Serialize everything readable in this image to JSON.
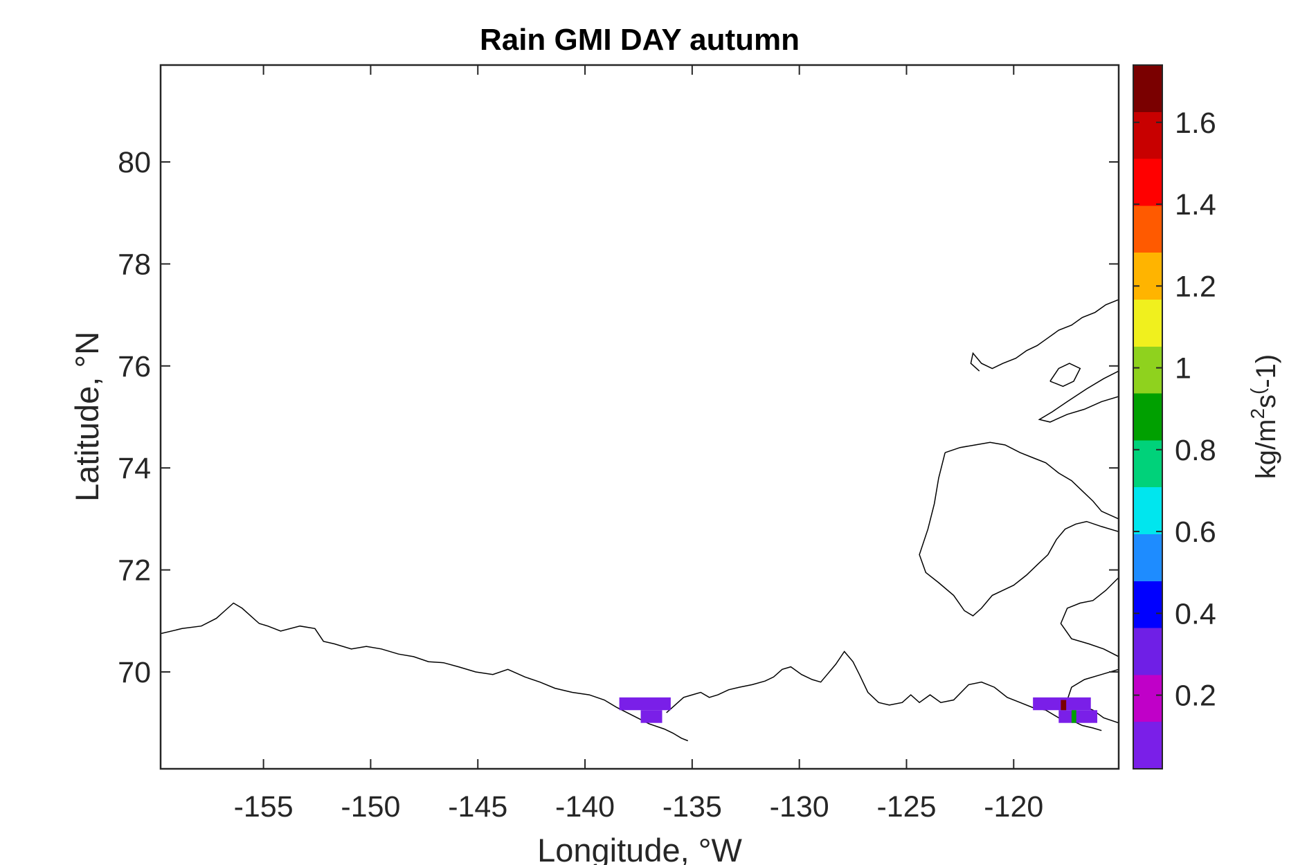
{
  "chart_data": {
    "type": "heatmap",
    "title": "Rain GMI DAY autumn",
    "xlabel": "Longitude, °W",
    "ylabel": "Latitude, °N",
    "xlim": [
      -159.8,
      -115.1
    ],
    "ylim": [
      68.1,
      81.9
    ],
    "xticks": [
      -155,
      -150,
      -145,
      -140,
      -135,
      -130,
      -125,
      -120
    ],
    "xtick_labels": [
      "-155",
      "-150",
      "-145",
      "-140",
      "-135",
      "-130",
      "-125",
      "-120"
    ],
    "yticks": [
      70,
      72,
      74,
      76,
      78,
      80
    ],
    "ytick_labels": [
      "70",
      "72",
      "74",
      "76",
      "78",
      "80"
    ],
    "colorbar": {
      "label_main": "kg/m",
      "label_sup1": "2",
      "label_mid": "s",
      "label_sup2": "(",
      "label_tail": "-1)",
      "range": [
        0.02,
        1.74
      ],
      "ticks": [
        0.2,
        0.4,
        0.6,
        0.8,
        1,
        1.2,
        1.4,
        1.6
      ],
      "tick_labels": [
        "0.2",
        "0.4",
        "0.6",
        "0.8",
        "1",
        "1.2",
        "1.4",
        "1.6"
      ],
      "colors": [
        "#7a1fe8",
        "#c000c8",
        "#6f1fe6",
        "#0000ff",
        "#1e8cff",
        "#00e6ee",
        "#00d27a",
        "#00a000",
        "#8fd21e",
        "#f0f01e",
        "#ffb400",
        "#ff5a00",
        "#ff0000",
        "#c80000",
        "#7a0000"
      ]
    },
    "grid": false,
    "cells": [
      {
        "lon0": -138.4,
        "lon1": -136.0,
        "lat0": 69.25,
        "lat1": 69.5,
        "value": 0.03
      },
      {
        "lon0": -137.4,
        "lon1": -136.4,
        "lat0": 69.0,
        "lat1": 69.25,
        "value": 0.03
      },
      {
        "lon0": -119.1,
        "lon1": -116.4,
        "lat0": 69.25,
        "lat1": 69.5,
        "value": 0.03
      },
      {
        "lon0": -117.9,
        "lon1": -116.1,
        "lat0": 69.0,
        "lat1": 69.25,
        "value": 0.03
      },
      {
        "lon0": -117.8,
        "lon1": -117.55,
        "lat0": 69.25,
        "lat1": 69.45,
        "value": 1.72
      },
      {
        "lon0": -117.3,
        "lon1": -117.08,
        "lat0": 69.0,
        "lat1": 69.25,
        "value": 0.85
      }
    ],
    "coastlines": [
      [
        [
          -159.8,
          70.75
        ],
        [
          -158.8,
          70.85
        ],
        [
          -157.9,
          70.9
        ],
        [
          -157.2,
          71.05
        ],
        [
          -156.8,
          71.2
        ],
        [
          -156.4,
          71.35
        ],
        [
          -156.0,
          71.25
        ],
        [
          -155.6,
          71.1
        ],
        [
          -155.2,
          70.95
        ],
        [
          -154.8,
          70.9
        ],
        [
          -154.2,
          70.8
        ],
        [
          -153.3,
          70.9
        ],
        [
          -152.6,
          70.85
        ],
        [
          -152.2,
          70.6
        ],
        [
          -151.7,
          70.55
        ],
        [
          -150.9,
          70.45
        ],
        [
          -150.2,
          70.5
        ],
        [
          -149.5,
          70.45
        ],
        [
          -148.7,
          70.35
        ],
        [
          -148.0,
          70.3
        ],
        [
          -147.3,
          70.2
        ],
        [
          -146.6,
          70.18
        ],
        [
          -145.9,
          70.1
        ],
        [
          -145.1,
          70.0
        ],
        [
          -144.3,
          69.95
        ],
        [
          -143.6,
          70.05
        ],
        [
          -142.8,
          69.9
        ],
        [
          -142.1,
          69.8
        ],
        [
          -141.4,
          69.68
        ],
        [
          -140.6,
          69.6
        ],
        [
          -139.8,
          69.55
        ],
        [
          -139.1,
          69.45
        ],
        [
          -138.5,
          69.3
        ],
        [
          -137.8,
          69.15
        ],
        [
          -137.0,
          68.98
        ],
        [
          -136.3,
          68.88
        ],
        [
          -135.9,
          68.8
        ],
        [
          -135.5,
          68.7
        ],
        [
          -135.2,
          68.65
        ]
      ],
      [
        [
          -136.2,
          69.2
        ],
        [
          -135.8,
          69.35
        ],
        [
          -135.4,
          69.5
        ],
        [
          -135.0,
          69.55
        ],
        [
          -134.6,
          69.6
        ],
        [
          -134.2,
          69.5
        ],
        [
          -133.8,
          69.55
        ],
        [
          -133.3,
          69.65
        ],
        [
          -132.8,
          69.7
        ],
        [
          -132.2,
          69.75
        ],
        [
          -131.6,
          69.82
        ],
        [
          -131.2,
          69.9
        ],
        [
          -130.8,
          70.05
        ],
        [
          -130.4,
          70.1
        ],
        [
          -129.9,
          69.95
        ],
        [
          -129.4,
          69.85
        ],
        [
          -129.0,
          69.8
        ],
        [
          -128.7,
          69.95
        ],
        [
          -128.3,
          70.15
        ],
        [
          -127.9,
          70.4
        ],
        [
          -127.5,
          70.2
        ],
        [
          -127.2,
          69.95
        ],
        [
          -126.8,
          69.6
        ],
        [
          -126.3,
          69.4
        ],
        [
          -125.8,
          69.35
        ],
        [
          -125.2,
          69.4
        ],
        [
          -124.8,
          69.55
        ],
        [
          -124.4,
          69.4
        ],
        [
          -123.9,
          69.55
        ],
        [
          -123.4,
          69.4
        ],
        [
          -122.8,
          69.45
        ],
        [
          -122.1,
          69.75
        ],
        [
          -121.5,
          69.8
        ],
        [
          -120.9,
          69.7
        ],
        [
          -120.3,
          69.5
        ],
        [
          -119.7,
          69.4
        ],
        [
          -119.1,
          69.3
        ],
        [
          -118.5,
          69.25
        ],
        [
          -117.9,
          69.1
        ],
        [
          -117.3,
          69.05
        ],
        [
          -116.8,
          68.95
        ],
        [
          -116.3,
          68.9
        ],
        [
          -115.9,
          68.85
        ]
      ],
      [
        [
          -123.2,
          74.3
        ],
        [
          -122.5,
          74.4
        ],
        [
          -121.8,
          74.45
        ],
        [
          -121.1,
          74.5
        ],
        [
          -120.4,
          74.45
        ],
        [
          -119.7,
          74.3
        ],
        [
          -119.1,
          74.2
        ],
        [
          -118.5,
          74.1
        ],
        [
          -117.9,
          73.9
        ],
        [
          -117.3,
          73.75
        ],
        [
          -116.8,
          73.55
        ],
        [
          -116.3,
          73.35
        ],
        [
          -115.9,
          73.15
        ],
        [
          -115.1,
          73.0
        ]
      ],
      [
        [
          -123.2,
          74.3
        ],
        [
          -123.5,
          73.8
        ],
        [
          -123.7,
          73.3
        ],
        [
          -124.0,
          72.8
        ],
        [
          -124.4,
          72.3
        ],
        [
          -124.1,
          71.95
        ],
        [
          -123.5,
          71.75
        ],
        [
          -122.8,
          71.5
        ],
        [
          -122.3,
          71.2
        ],
        [
          -121.9,
          71.1
        ],
        [
          -121.5,
          71.25
        ],
        [
          -121.0,
          71.5
        ],
        [
          -120.5,
          71.6
        ],
        [
          -120.0,
          71.7
        ],
        [
          -119.4,
          71.9
        ],
        [
          -118.9,
          72.1
        ],
        [
          -118.4,
          72.3
        ],
        [
          -118.0,
          72.6
        ],
        [
          -117.6,
          72.8
        ],
        [
          -117.1,
          72.9
        ],
        [
          -116.6,
          72.95
        ],
        [
          -115.9,
          72.85
        ],
        [
          -115.1,
          72.75
        ]
      ],
      [
        [
          -115.1,
          71.85
        ],
        [
          -115.7,
          71.6
        ],
        [
          -116.3,
          71.4
        ],
        [
          -116.9,
          71.35
        ],
        [
          -117.5,
          71.25
        ],
        [
          -117.8,
          70.95
        ],
        [
          -117.3,
          70.65
        ],
        [
          -116.5,
          70.55
        ],
        [
          -115.8,
          70.45
        ],
        [
          -115.1,
          70.3
        ]
      ],
      [
        [
          -115.1,
          70.05
        ],
        [
          -115.9,
          69.95
        ],
        [
          -116.7,
          69.85
        ],
        [
          -117.3,
          69.7
        ],
        [
          -117.5,
          69.45
        ],
        [
          -116.9,
          69.35
        ],
        [
          -116.3,
          69.25
        ],
        [
          -115.8,
          69.1
        ],
        [
          -115.1,
          69.0
        ]
      ],
      [
        [
          -115.1,
          77.3
        ],
        [
          -115.7,
          77.2
        ],
        [
          -116.2,
          77.05
        ],
        [
          -116.8,
          76.95
        ],
        [
          -117.3,
          76.8
        ],
        [
          -117.9,
          76.7
        ],
        [
          -118.4,
          76.55
        ],
        [
          -118.9,
          76.4
        ],
        [
          -119.4,
          76.3
        ],
        [
          -119.9,
          76.15
        ],
        [
          -120.5,
          76.05
        ],
        [
          -121.0,
          75.95
        ],
        [
          -121.5,
          76.05
        ],
        [
          -121.9,
          76.25
        ],
        [
          -122.0,
          76.05
        ],
        [
          -121.6,
          75.9
        ]
      ],
      [
        [
          -115.1,
          75.9
        ],
        [
          -115.8,
          75.75
        ],
        [
          -116.6,
          75.55
        ],
        [
          -117.5,
          75.3
        ],
        [
          -118.2,
          75.1
        ],
        [
          -118.8,
          74.95
        ],
        [
          -118.3,
          74.9
        ],
        [
          -117.5,
          75.05
        ],
        [
          -116.7,
          75.15
        ],
        [
          -115.9,
          75.3
        ],
        [
          -115.1,
          75.4
        ]
      ],
      [
        [
          -118.3,
          75.7
        ],
        [
          -117.9,
          75.95
        ],
        [
          -117.4,
          76.05
        ],
        [
          -116.9,
          75.95
        ],
        [
          -117.2,
          75.7
        ],
        [
          -117.7,
          75.6
        ],
        [
          -118.3,
          75.7
        ]
      ]
    ]
  }
}
